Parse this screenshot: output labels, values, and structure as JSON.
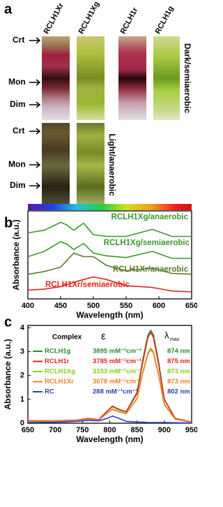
{
  "panel_a": {
    "label": "a",
    "columns": [
      "RCLH1Xr",
      "RCLH1Xg",
      "RCLH1r",
      "RCLH1g"
    ],
    "rows": [
      {
        "condition": "Dark/semiaerobic",
        "bands": [
          "Crt",
          "Mon",
          "Dim"
        ]
      },
      {
        "condition": "Light/anaerobic",
        "bands": [
          "Crt",
          "Mon",
          "Dim"
        ]
      }
    ]
  },
  "chart_data": [
    {
      "type": "line",
      "panel": "b",
      "x_label": "Wavelength (nm)",
      "y_label": "Absorbance (a.u.)",
      "xlim": [
        400,
        650
      ],
      "xticks": [
        400,
        450,
        500,
        550,
        600,
        650
      ],
      "ylim": [
        0,
        10
      ],
      "x": [
        400,
        425,
        450,
        460,
        470,
        485,
        500,
        520,
        550,
        590,
        620,
        650
      ],
      "series": [
        {
          "name": "RCLH1Xg/anaerobic",
          "color": "#3a9a2a",
          "values": [
            7.5,
            7.8,
            8.7,
            8.4,
            7.8,
            8.6,
            7.3,
            7.1,
            7.1,
            7.9,
            7.1,
            7.1
          ]
        },
        {
          "name": "RCLH1Xg/semiaerobic",
          "color": "#3a9a2a",
          "values": [
            4.8,
            5.4,
            6.5,
            6.2,
            5.6,
            6.3,
            5.2,
            4.9,
            4.7,
            5.4,
            4.6,
            4.6
          ]
        },
        {
          "name": "RCLH1Xr/anaerobic",
          "color": "#5a7a2a",
          "values": [
            2.8,
            3.1,
            3.6,
            4.4,
            5.2,
            4.8,
            4.8,
            3.8,
            3.2,
            3.5,
            2.9,
            2.8
          ]
        },
        {
          "name": "RCLH1Xr/semiaerobic",
          "color": "#e8231b",
          "values": [
            1.0,
            1.1,
            1.4,
            1.6,
            1.9,
            2.2,
            2.5,
            2.2,
            1.5,
            1.3,
            0.9,
            0.8
          ]
        }
      ]
    },
    {
      "type": "line",
      "panel": "c",
      "x_label": "Wavelength (nm)",
      "y_label": "Absorbance (a.u.)",
      "xlim": [
        650,
        950
      ],
      "xticks": [
        650,
        700,
        750,
        800,
        850,
        900,
        950
      ],
      "ylim": [
        0,
        4.1
      ],
      "yticks": [
        0,
        1,
        2,
        3,
        4
      ],
      "legend_headers": {
        "complex": "Complex",
        "epsilon": "ε",
        "lambda": "λ",
        "lambda_sub": "max"
      },
      "x": [
        650,
        700,
        740,
        760,
        780,
        795,
        805,
        815,
        830,
        850,
        860,
        870,
        875,
        880,
        890,
        900,
        920,
        950
      ],
      "series": [
        {
          "name": "RCLH1g",
          "color": "#2e8b2e",
          "epsilon": "3895 mM⁻¹cm⁻¹",
          "lambda_max": "874 nm",
          "values": [
            0.1,
            0.1,
            0.13,
            0.2,
            0.15,
            0.5,
            0.72,
            0.6,
            0.48,
            1.3,
            2.6,
            3.7,
            3.9,
            3.7,
            2.5,
            1.0,
            0.2,
            0.05
          ]
        },
        {
          "name": "RCLH1r",
          "color": "#e8231b",
          "epsilon": "3785 mM⁻¹cm⁻¹",
          "lambda_max": "875 nm",
          "values": [
            0.1,
            0.1,
            0.13,
            0.2,
            0.15,
            0.5,
            0.7,
            0.58,
            0.47,
            1.25,
            2.5,
            3.6,
            3.8,
            3.6,
            2.4,
            0.98,
            0.2,
            0.05
          ]
        },
        {
          "name": "RCLH1Xg",
          "color": "#7fd11b",
          "epsilon": "3153 mM⁻¹cm⁻¹",
          "lambda_max": "873 nm",
          "values": [
            0.08,
            0.09,
            0.12,
            0.17,
            0.13,
            0.42,
            0.6,
            0.5,
            0.4,
            1.05,
            2.1,
            2.95,
            3.15,
            3.0,
            2.0,
            0.8,
            0.17,
            0.04
          ]
        },
        {
          "name": "RCLH1Xr",
          "color": "#f07d2a",
          "epsilon": "3078 mM⁻¹cm⁻¹",
          "lambda_max": "873 nm",
          "values": [
            0.08,
            0.09,
            0.12,
            0.17,
            0.13,
            0.42,
            0.58,
            0.49,
            0.4,
            1.02,
            2.05,
            2.9,
            3.08,
            2.95,
            1.95,
            0.78,
            0.17,
            0.04
          ]
        },
        {
          "name": "RC",
          "color": "#2b3fbf",
          "epsilon": "288 mM⁻¹cm⁻¹",
          "lambda_max": "802 nm",
          "values": [
            0.03,
            0.04,
            0.08,
            0.12,
            0.1,
            0.2,
            0.3,
            0.22,
            0.08,
            0.05,
            0.04,
            0.03,
            0.03,
            0.03,
            0.03,
            0.03,
            0.02,
            0.01
          ]
        }
      ]
    }
  ]
}
